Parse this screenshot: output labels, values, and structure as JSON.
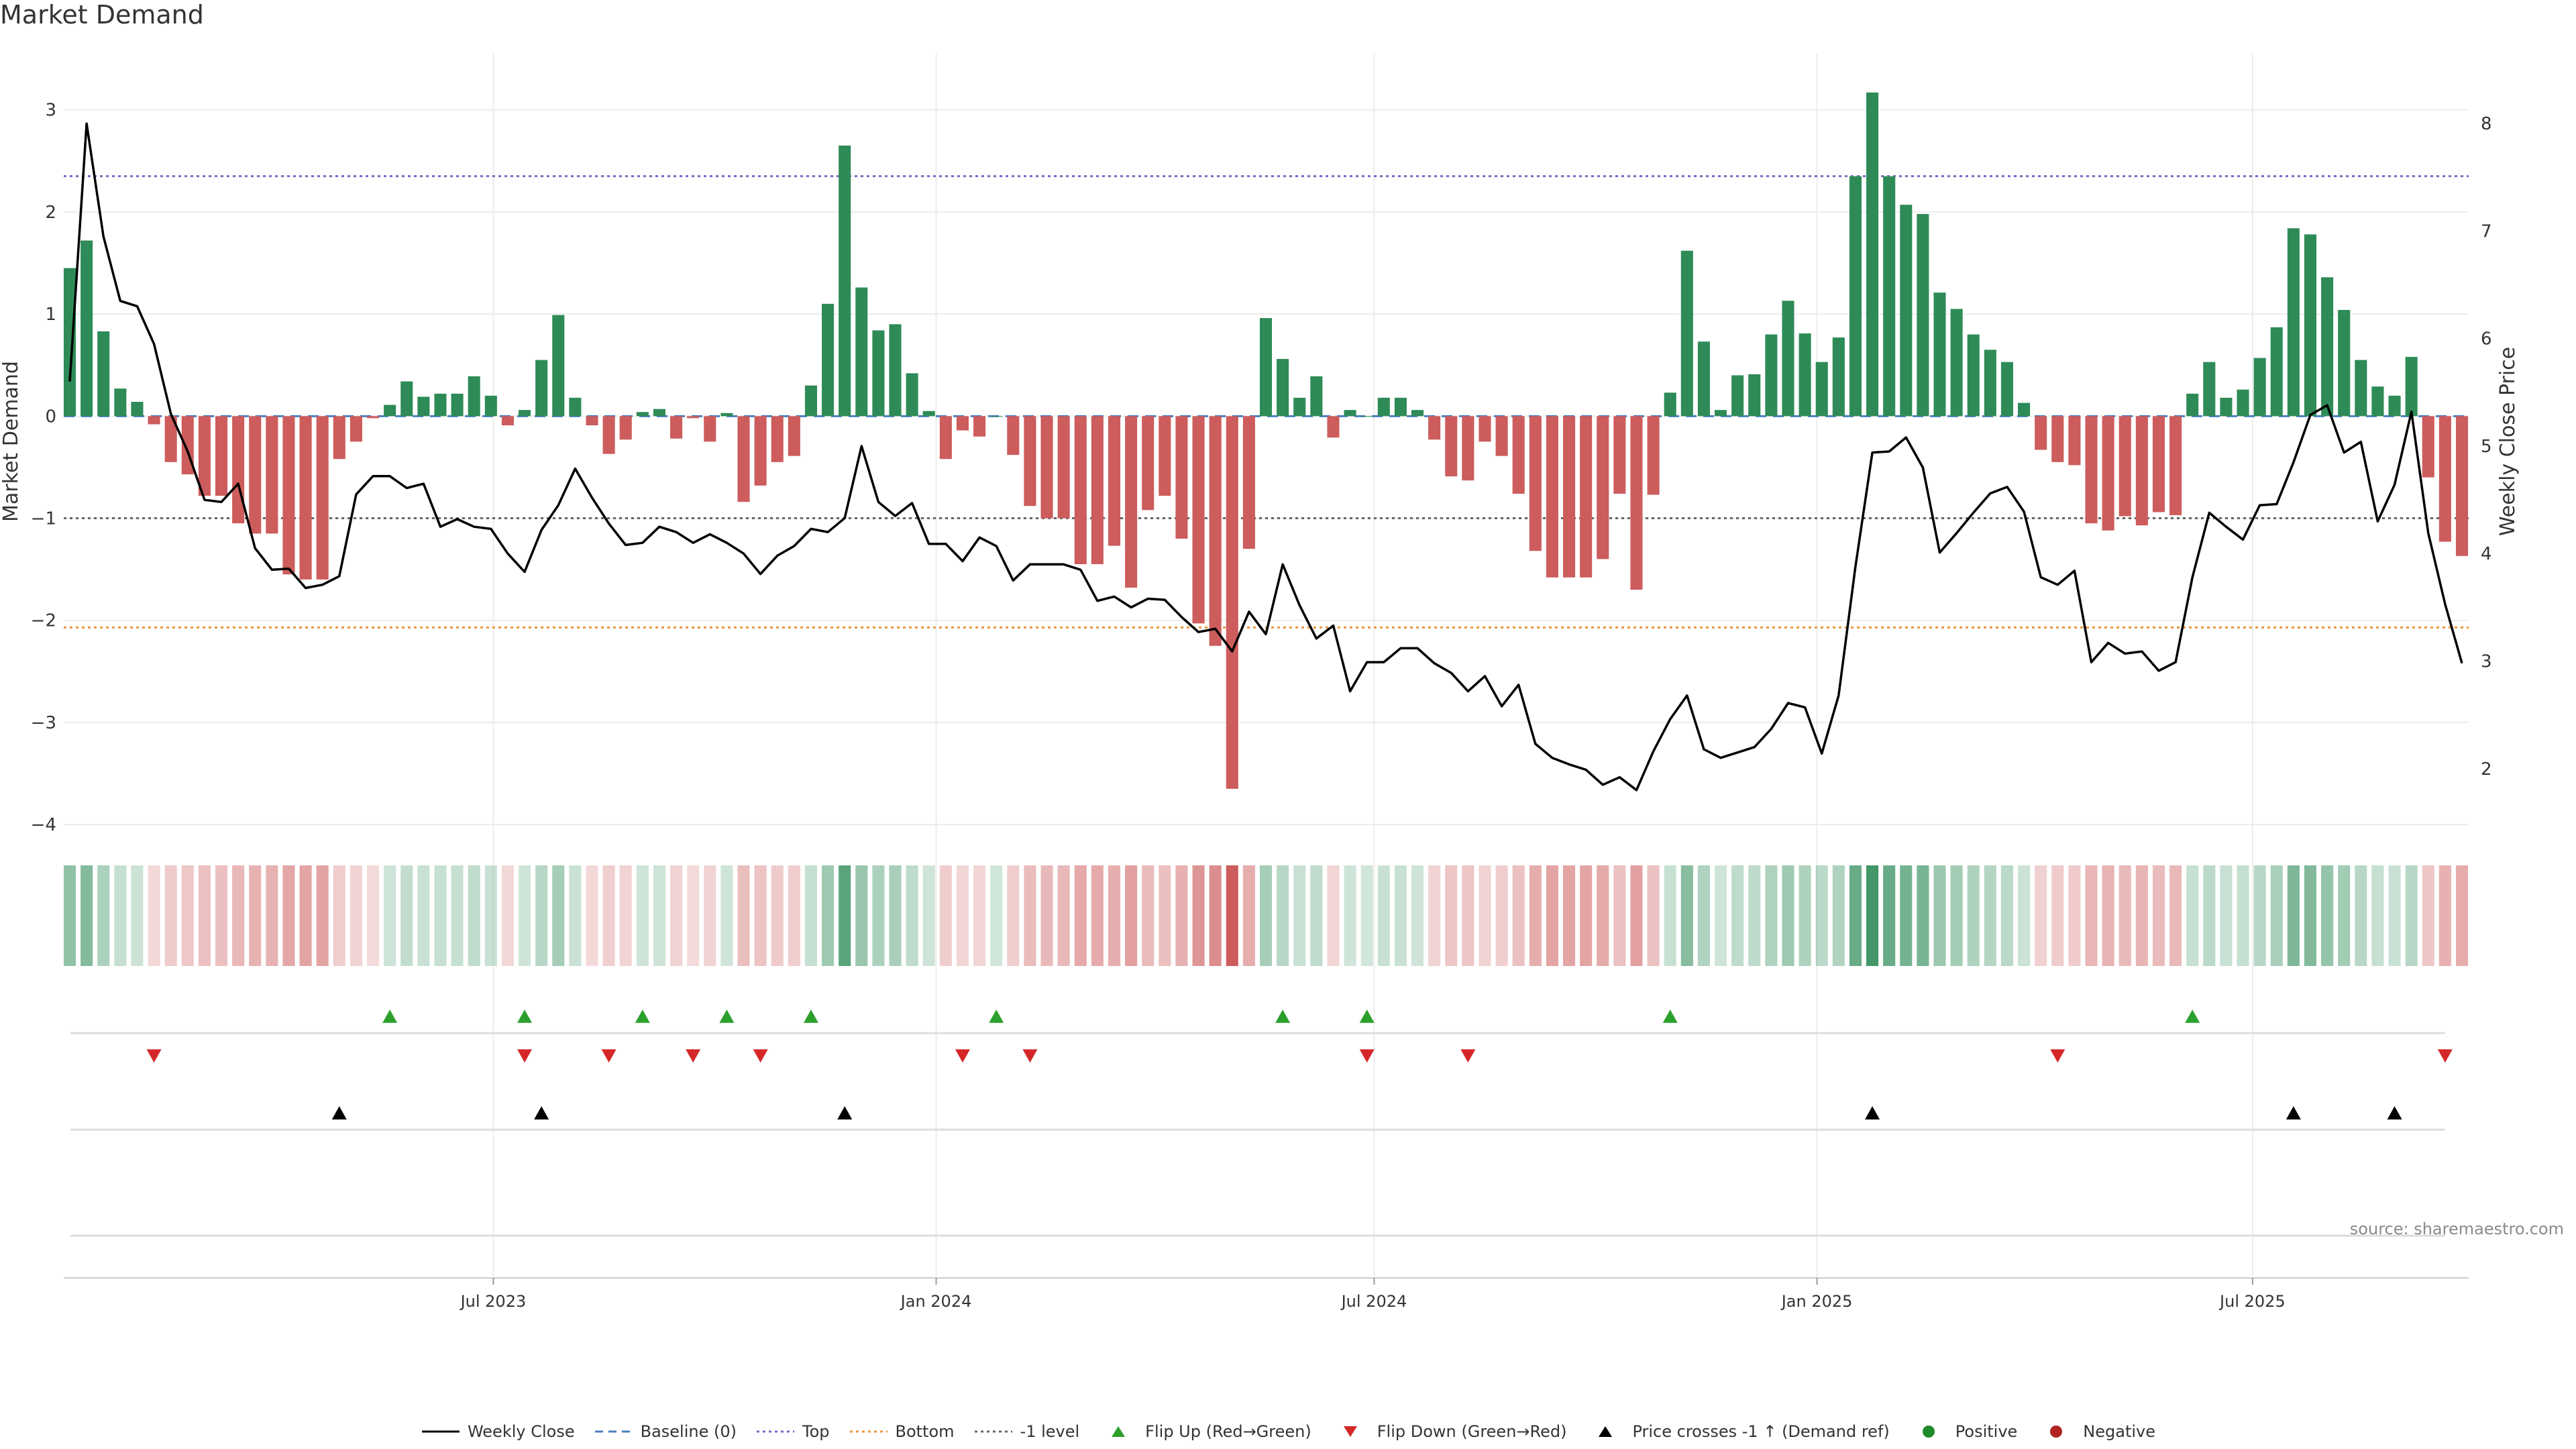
{
  "title": "Market Demand",
  "source": "source: sharemaestro.com",
  "colors": {
    "positive": "#2e8b57",
    "negative": "#cd5c5c",
    "price": "#000000",
    "top": "#7b68c8",
    "bottom": "#e8963c",
    "minus1": "#666666",
    "baseline": "#4a7fbf",
    "flip_up": "#2ca02c",
    "flip_down": "#d62728"
  },
  "chart_data": {
    "type": "bar",
    "x_start": "2023-01-06",
    "x_step_days": 7,
    "left_axis": {
      "label": "Market Demand",
      "ticks": [
        "3",
        "2",
        "1",
        "0",
        "−1",
        "−2",
        "−3",
        "−4"
      ],
      "ylim": [
        -4.4,
        3.55
      ]
    },
    "right_axis": {
      "label": "Weekly Close Price",
      "ticks": [
        "8",
        "7",
        "6",
        "5",
        "4",
        "3",
        "2"
      ],
      "ylim": [
        1.1,
        8.65
      ]
    },
    "x_ticks": [
      {
        "date": "2023-07-01",
        "label": "Jul 2023"
      },
      {
        "date": "2024-01-01",
        "label": "Jan 2024"
      },
      {
        "date": "2024-07-01",
        "label": "Jul 2024"
      },
      {
        "date": "2025-01-01",
        "label": "Jan 2025"
      },
      {
        "date": "2025-07-01",
        "label": "Jul 2025"
      }
    ],
    "reference_lines": {
      "top": 2.35,
      "bottom": -2.07,
      "minus1": -1.0,
      "baseline": 0
    },
    "demand": [
      1.45,
      1.72,
      0.83,
      0.27,
      0.14,
      -0.08,
      -0.45,
      -0.57,
      -0.78,
      -0.78,
      -1.05,
      -1.15,
      -1.15,
      -1.55,
      -1.6,
      -1.6,
      -0.42,
      -0.25,
      -0.02,
      0.11,
      0.34,
      0.19,
      0.22,
      0.22,
      0.39,
      0.2,
      -0.09,
      0.06,
      0.55,
      0.99,
      0.18,
      -0.09,
      -0.37,
      -0.23,
      0.04,
      0.07,
      -0.22,
      -0.02,
      -0.25,
      0.03,
      -0.84,
      -0.68,
      -0.45,
      -0.39,
      0.3,
      1.1,
      2.65,
      1.26,
      0.84,
      0.9,
      0.42,
      0.05,
      -0.42,
      -0.14,
      -0.2,
      0.0,
      -0.38,
      -0.88,
      -1.0,
      -1.0,
      -1.45,
      -1.45,
      -1.27,
      -1.68,
      -0.92,
      -0.78,
      -1.2,
      -2.03,
      -2.25,
      -3.65,
      -1.3,
      0.96,
      0.56,
      0.18,
      0.39,
      -0.21,
      0.06,
      0.0,
      0.18,
      0.18,
      0.06,
      -0.23,
      -0.59,
      -0.63,
      -0.25,
      -0.39,
      -0.76,
      -1.32,
      -1.58,
      -1.58,
      -1.58,
      -1.4,
      -0.76,
      -1.7,
      -0.77,
      0.23,
      1.62,
      0.73,
      0.06,
      0.4,
      0.41,
      0.8,
      1.13,
      0.81,
      0.53,
      0.77,
      2.35,
      3.17,
      2.35,
      2.07,
      1.98,
      1.21,
      1.05,
      0.8,
      0.65,
      0.53,
      0.13,
      -0.33,
      -0.45,
      -0.48,
      -1.05,
      -1.12,
      -0.98,
      -1.07,
      -0.94,
      -0.97,
      0.22,
      0.53,
      0.18,
      0.26,
      0.57,
      0.87,
      1.84,
      1.78,
      1.36,
      1.04,
      0.55,
      0.29,
      0.2,
      0.58,
      -0.6,
      -1.23,
      -1.37
    ],
    "weekly_close": [
      5.6,
      8.0,
      6.95,
      6.35,
      6.3,
      5.95,
      5.3,
      4.95,
      4.5,
      4.48,
      4.65,
      4.05,
      3.85,
      3.86,
      3.68,
      3.71,
      3.79,
      4.55,
      4.72,
      4.72,
      4.61,
      4.65,
      4.25,
      4.32,
      4.25,
      4.23,
      4.0,
      3.83,
      4.22,
      4.45,
      4.79,
      4.52,
      4.28,
      4.08,
      4.1,
      4.25,
      4.2,
      4.1,
      4.18,
      4.1,
      4.0,
      3.81,
      3.98,
      4.07,
      4.23,
      4.2,
      4.33,
      5.0,
      4.48,
      4.35,
      4.47,
      4.09,
      4.09,
      3.93,
      4.15,
      4.07,
      3.75,
      3.9,
      3.9,
      3.9,
      3.85,
      3.56,
      3.6,
      3.5,
      3.58,
      3.57,
      3.41,
      3.27,
      3.3,
      3.09,
      3.46,
      3.25,
      3.9,
      3.52,
      3.21,
      3.33,
      2.72,
      2.99,
      2.99,
      3.12,
      3.12,
      2.98,
      2.89,
      2.72,
      2.86,
      2.58,
      2.78,
      2.23,
      2.1,
      2.04,
      1.99,
      1.85,
      1.92,
      1.8,
      2.16,
      2.46,
      2.68,
      2.18,
      2.1,
      2.15,
      2.2,
      2.37,
      2.61,
      2.57,
      2.14,
      2.68,
      3.88,
      4.94,
      4.95,
      5.08,
      4.8,
      4.01,
      4.19,
      4.38,
      4.56,
      4.62,
      4.39,
      3.78,
      3.71,
      3.84,
      2.99,
      3.17,
      3.07,
      3.09,
      2.91,
      2.99,
      3.78,
      4.38,
      4.25,
      4.13,
      4.45,
      4.46,
      4.85,
      5.29,
      5.38,
      4.94,
      5.04,
      4.3,
      4.64,
      5.32,
      4.19,
      3.53,
      2.98
    ]
  },
  "indicators": {
    "flip_up_weeks": [
      19,
      27,
      34,
      39,
      44,
      55,
      72,
      77,
      95,
      126
    ],
    "flip_down_weeks": [
      5,
      27,
      32,
      37,
      41,
      53,
      57,
      77,
      83,
      118,
      141
    ],
    "price_cross_weeks": [
      16,
      28,
      46,
      107,
      132,
      138
    ]
  },
  "legend": [
    {
      "key": "weekly_close",
      "label": "Weekly Close",
      "marker": "solid-line"
    },
    {
      "key": "baseline",
      "label": "Baseline (0)",
      "marker": "dashed-line"
    },
    {
      "key": "top",
      "label": "Top",
      "marker": "dotted-line"
    },
    {
      "key": "bottom",
      "label": "Bottom",
      "marker": "dotted-line"
    },
    {
      "key": "minus1",
      "label": "-1 level",
      "marker": "dotted-line"
    },
    {
      "key": "flip_up",
      "label": "Flip Up (Red→Green)",
      "marker": "triangle-up"
    },
    {
      "key": "flip_down",
      "label": "Flip Down (Green→Red)",
      "marker": "triangle-down"
    },
    {
      "key": "price_cross",
      "label": "Price crosses -1 ↑ (Demand ref)",
      "marker": "triangle-up-black"
    },
    {
      "key": "positive",
      "label": "Positive",
      "marker": "dot-green"
    },
    {
      "key": "negative",
      "label": "Negative",
      "marker": "dot-red"
    }
  ]
}
